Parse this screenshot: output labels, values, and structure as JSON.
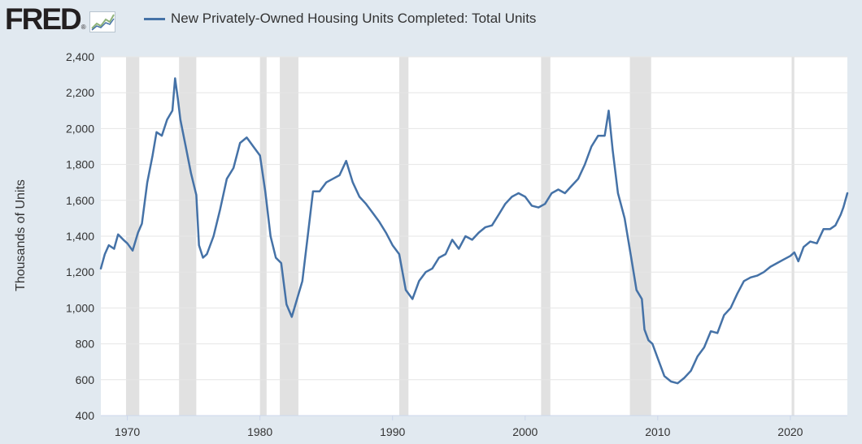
{
  "header": {
    "logo_text": "FRED",
    "logo_reg": "®",
    "legend_label": "New Privately-Owned Housing Units Completed: Total Units"
  },
  "colors": {
    "background": "#e1e9f0",
    "plot_background": "#ffffff",
    "series": "#4572a7",
    "recession": "#e1e1e1",
    "grid": "#e6e6e6"
  },
  "chart_data": {
    "type": "line",
    "title": "New Privately-Owned Housing Units Completed: Total Units",
    "xlabel": "",
    "ylabel": "Thousands of Units",
    "xlim": [
      1968.0,
      2024.3
    ],
    "ylim": [
      400,
      2400
    ],
    "y_ticks": [
      400,
      600,
      800,
      1000,
      1200,
      1400,
      1600,
      1800,
      2000,
      2200,
      2400
    ],
    "x_ticks": [
      1970,
      1980,
      1990,
      2000,
      2010,
      2020
    ],
    "recessions": [
      [
        1969.9,
        1970.9
      ],
      [
        1973.9,
        1975.2
      ],
      [
        1980.0,
        1980.5
      ],
      [
        1981.5,
        1982.9
      ],
      [
        1990.5,
        1991.2
      ],
      [
        2001.2,
        2001.9
      ],
      [
        2007.9,
        2009.5
      ],
      [
        2020.1,
        2020.3
      ]
    ],
    "series": [
      {
        "name": "New Privately-Owned Housing Units Completed: Total Units",
        "x": [
          1968.0,
          1968.3,
          1968.6,
          1969.0,
          1969.3,
          1969.7,
          1970.0,
          1970.4,
          1970.8,
          1971.1,
          1971.5,
          1971.9,
          1972.2,
          1972.6,
          1973.0,
          1973.4,
          1973.6,
          1973.8,
          1974.0,
          1974.4,
          1974.8,
          1975.2,
          1975.4,
          1975.7,
          1976.0,
          1976.5,
          1977.0,
          1977.5,
          1978.0,
          1978.5,
          1979.0,
          1979.5,
          1980.0,
          1980.4,
          1980.8,
          1981.2,
          1981.6,
          1982.0,
          1982.4,
          1982.8,
          1983.2,
          1983.6,
          1984.0,
          1984.5,
          1985.0,
          1985.5,
          1986.0,
          1986.5,
          1987.0,
          1987.5,
          1988.0,
          1988.5,
          1989.0,
          1989.5,
          1990.0,
          1990.5,
          1991.0,
          1991.5,
          1992.0,
          1992.5,
          1993.0,
          1993.5,
          1994.0,
          1994.5,
          1995.0,
          1995.5,
          1996.0,
          1996.5,
          1997.0,
          1997.5,
          1998.0,
          1998.5,
          1999.0,
          1999.5,
          2000.0,
          2000.5,
          2001.0,
          2001.5,
          2002.0,
          2002.5,
          2003.0,
          2003.5,
          2004.0,
          2004.5,
          2005.0,
          2005.5,
          2006.0,
          2006.3,
          2006.6,
          2007.0,
          2007.5,
          2008.0,
          2008.4,
          2008.8,
          2009.0,
          2009.3,
          2009.6,
          2010.0,
          2010.5,
          2011.0,
          2011.5,
          2012.0,
          2012.5,
          2013.0,
          2013.5,
          2014.0,
          2014.5,
          2015.0,
          2015.5,
          2016.0,
          2016.5,
          2017.0,
          2017.5,
          2018.0,
          2018.5,
          2019.0,
          2019.5,
          2020.0,
          2020.3,
          2020.6,
          2021.0,
          2021.5,
          2022.0,
          2022.5,
          2023.0,
          2023.4,
          2023.8,
          2024.0,
          2024.3
        ],
        "values": [
          1220,
          1300,
          1350,
          1330,
          1410,
          1380,
          1360,
          1320,
          1420,
          1470,
          1700,
          1850,
          1980,
          1960,
          2050,
          2100,
          2280,
          2170,
          2050,
          1900,
          1750,
          1630,
          1350,
          1280,
          1300,
          1400,
          1550,
          1720,
          1780,
          1920,
          1950,
          1900,
          1850,
          1650,
          1400,
          1280,
          1250,
          1020,
          950,
          1050,
          1150,
          1400,
          1650,
          1650,
          1700,
          1720,
          1740,
          1820,
          1700,
          1620,
          1580,
          1530,
          1480,
          1420,
          1350,
          1300,
          1100,
          1050,
          1150,
          1200,
          1220,
          1280,
          1300,
          1380,
          1330,
          1400,
          1380,
          1420,
          1450,
          1460,
          1520,
          1580,
          1620,
          1640,
          1620,
          1570,
          1560,
          1580,
          1640,
          1660,
          1640,
          1680,
          1720,
          1800,
          1900,
          1960,
          1960,
          2100,
          1880,
          1640,
          1500,
          1280,
          1100,
          1050,
          880,
          820,
          800,
          720,
          620,
          590,
          580,
          610,
          650,
          730,
          780,
          870,
          860,
          960,
          1000,
          1080,
          1150,
          1170,
          1180,
          1200,
          1230,
          1250,
          1270,
          1290,
          1310,
          1260,
          1340,
          1370,
          1360,
          1440,
          1440,
          1460,
          1520,
          1560,
          1640
        ]
      }
    ]
  }
}
